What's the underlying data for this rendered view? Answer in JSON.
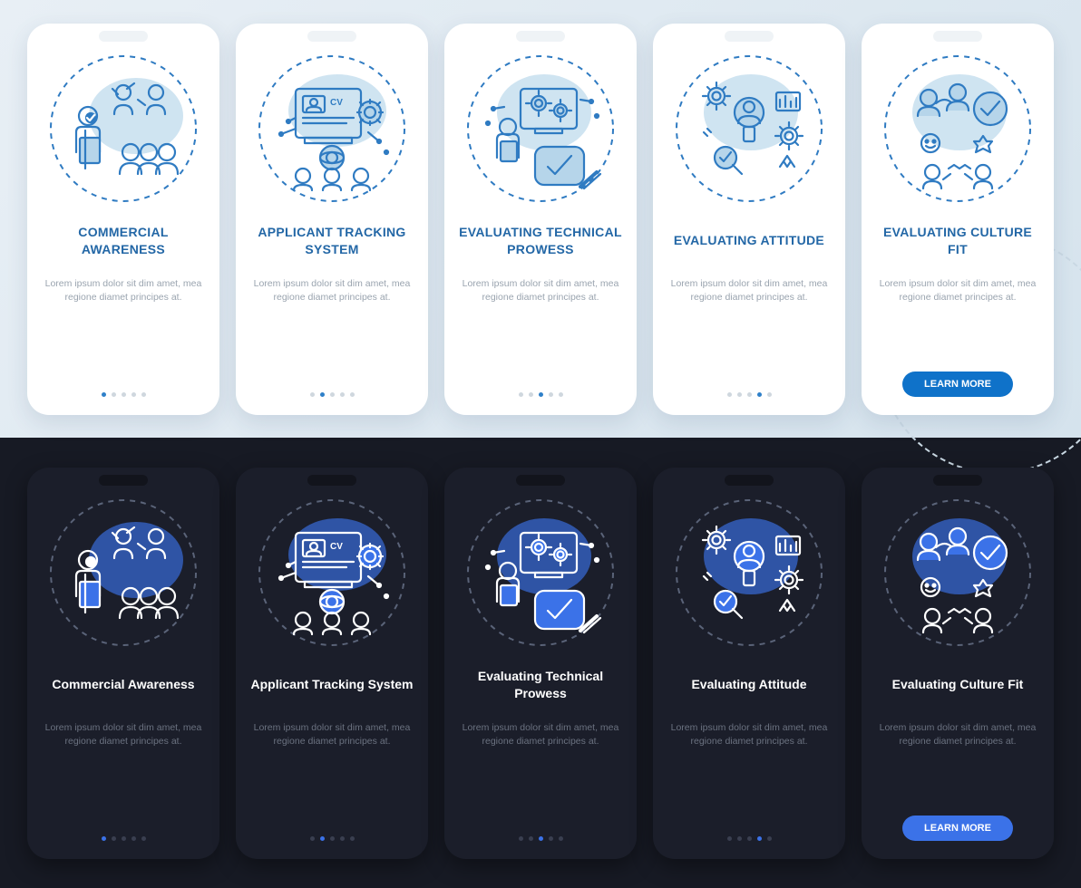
{
  "body_text": "Lorem ipsum dolor sit dim amet, mea regione diamet principes at.",
  "cta_label": "LEARN MORE",
  "colors": {
    "light_bg": "#e8eff5",
    "light_phone_bg": "#ffffff",
    "light_title": "#2367a6",
    "light_body": "#9aa4af",
    "light_dot_active": "#2f80c9",
    "light_dot_inactive": "#cfd7de",
    "light_cta": "#0f72c9",
    "light_icon_stroke": "#2f7bc2",
    "light_icon_fill": "#b6d5ea",
    "dark_bg": "#171a24",
    "dark_phone_bg": "#1b1e2a",
    "dark_title": "#ffffff",
    "dark_body": "#6b7280",
    "dark_dot_active": "#3b72e8",
    "dark_dot_inactive": "#3a3f50",
    "dark_cta": "#3b72e8",
    "dark_icon_stroke": "#ffffff",
    "dark_icon_fill": "#3b72e8"
  },
  "cards": [
    {
      "title_light": "COMMERCIAL AWARENESS",
      "title_dark": "Commercial Awareness",
      "icon": "commercial-awareness-icon",
      "active_dot": 0
    },
    {
      "title_light": "APPLICANT TRACKING SYSTEM",
      "title_dark": "Applicant Tracking System",
      "icon": "applicant-tracking-icon",
      "active_dot": 1
    },
    {
      "title_light": "EVALUATING TECHNICAL PROWESS",
      "title_dark": "Evaluating Technical Prowess",
      "icon": "technical-prowess-icon",
      "active_dot": 2
    },
    {
      "title_light": "EVALUATING ATTITUDE",
      "title_dark": "Evaluating Attitude",
      "icon": "evaluating-attitude-icon",
      "active_dot": 3
    },
    {
      "title_light": "EVALUATING CULTURE FIT",
      "title_dark": "Evaluating Culture Fit",
      "icon": "culture-fit-icon",
      "active_dot": 4,
      "has_cta": true
    }
  ],
  "dot_count": 5
}
